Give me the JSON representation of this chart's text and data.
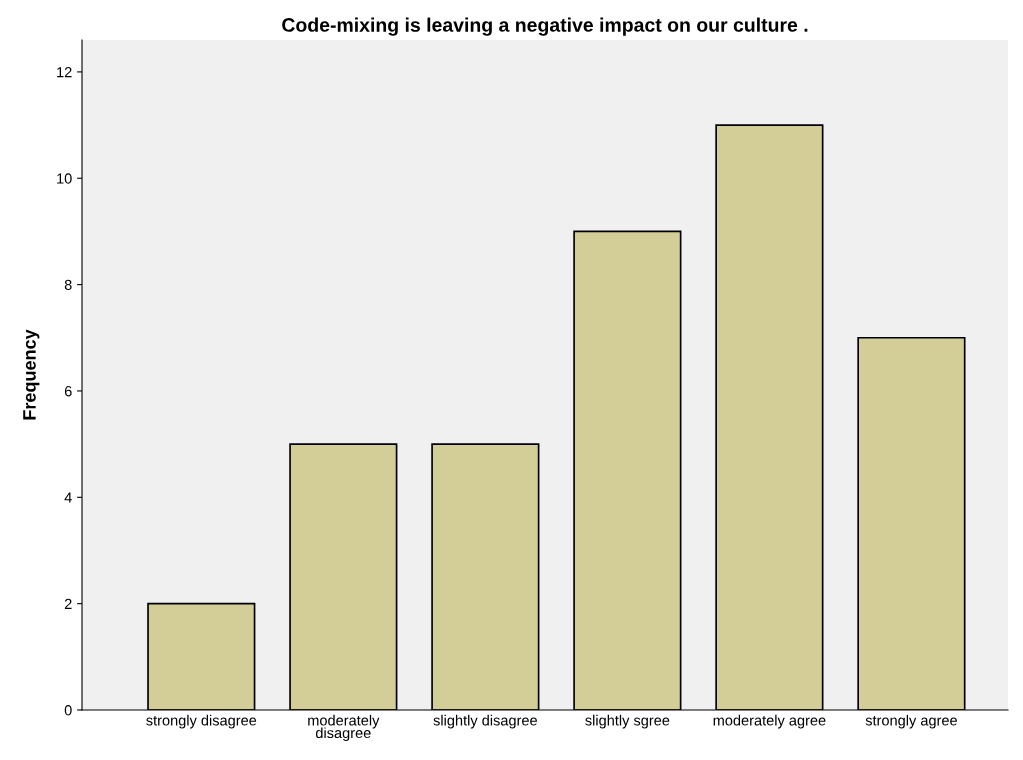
{
  "chart_data": {
    "type": "bar",
    "title": "Code-mixing is leaving a negative impact on our culture .",
    "ylabel": "Frequency",
    "categories": [
      "strongly disagree",
      "moderately\ndisagree",
      "slightly disagree",
      "slightly sgree",
      "moderately agree",
      "strongly agree"
    ],
    "values": [
      2,
      5,
      5,
      9,
      11,
      7
    ],
    "color": "#d3ce97",
    "ylim": [
      0,
      12.6
    ],
    "yticks": [
      0,
      2,
      4,
      6,
      8,
      10,
      12
    ],
    "grid": false,
    "legend": false
  }
}
